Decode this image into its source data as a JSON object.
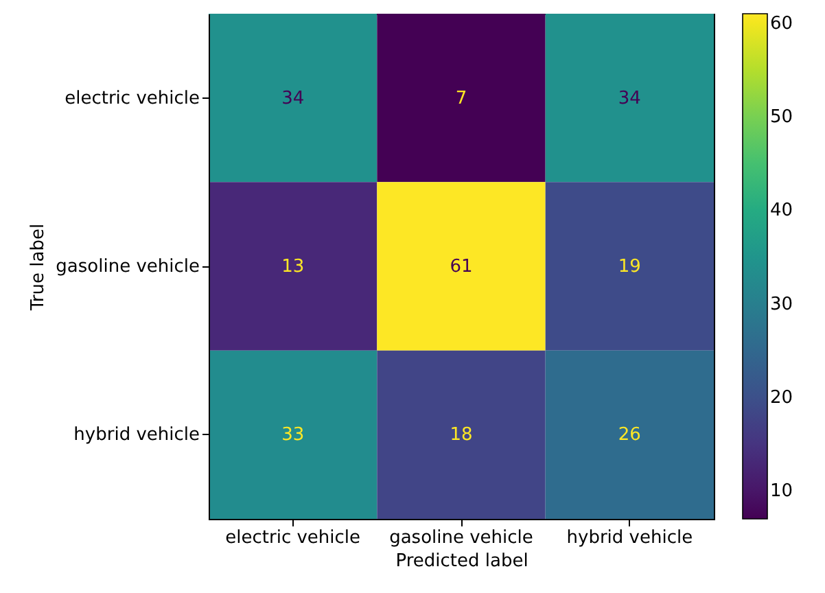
{
  "chart_data": {
    "type": "heatmap",
    "categories": [
      "electric vehicle",
      "gasoline vehicle",
      "hybrid vehicle"
    ],
    "y_categories": [
      "electric vehicle",
      "gasoline vehicle",
      "hybrid vehicle"
    ],
    "cells": [
      [
        34,
        7,
        34
      ],
      [
        13,
        61,
        19
      ],
      [
        33,
        18,
        26
      ]
    ],
    "clim": [
      7,
      61
    ],
    "cticks": [
      10,
      20,
      30,
      40,
      50,
      60
    ],
    "xlabel": "Predicted label",
    "ylabel": "True label",
    "data_labels": true
  }
}
